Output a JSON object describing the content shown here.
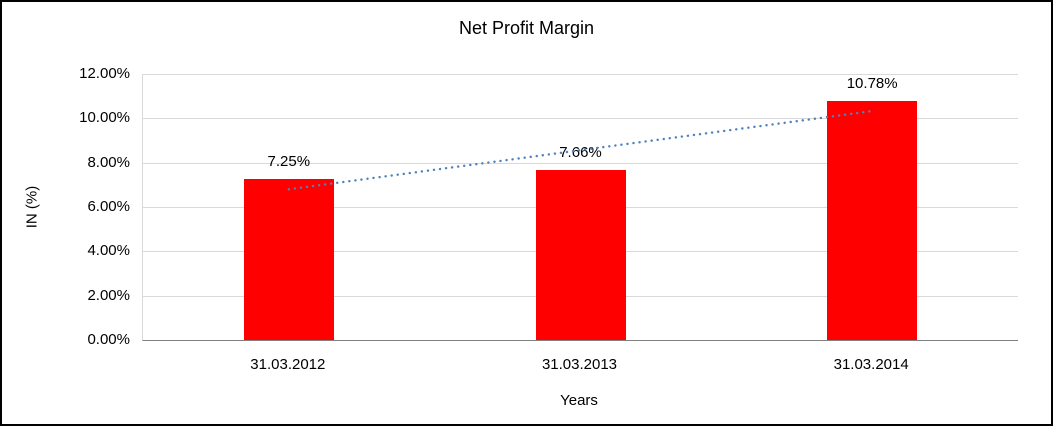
{
  "chart_data": {
    "type": "bar",
    "title": "Net Profit Margin",
    "xlabel": "Years",
    "ylabel": "IN (%)",
    "categories": [
      "31.03.2012",
      "31.03.2013",
      "31.03.2014"
    ],
    "values": [
      7.25,
      7.66,
      10.78
    ],
    "value_labels": [
      "7.25%",
      "7.66%",
      "10.78%"
    ],
    "y_ticks": [
      "0.00%",
      "2.00%",
      "4.00%",
      "6.00%",
      "8.00%",
      "10.00%",
      "12.00%"
    ],
    "ylim": [
      0,
      12
    ],
    "grid": true,
    "legend": "none",
    "bar_color": "#ff0000",
    "axis_color": "#808080",
    "gridline_color": "#d9d9d9",
    "trendline": {
      "type": "linear",
      "color": "#4f81bd",
      "style": "dotted"
    }
  }
}
